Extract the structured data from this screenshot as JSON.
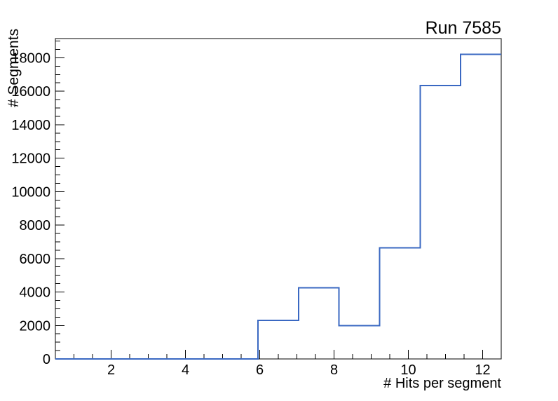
{
  "window": {
    "background": "#ffffff"
  },
  "chart_data": {
    "type": "step-histogram",
    "title": "Run 7585",
    "xlabel": "# Hits per segment",
    "ylabel": "# Segments",
    "xlim": [
      0.5,
      12.5
    ],
    "ylim": [
      0,
      19150
    ],
    "bin_edges": [
      0.5,
      1.5909,
      2.6818,
      3.7727,
      4.8636,
      5.9545,
      7.0455,
      8.1364,
      9.2273,
      10.3182,
      11.4091,
      12.5
    ],
    "counts": [
      0,
      0,
      0,
      0,
      0,
      2300,
      4250,
      2000,
      6650,
      16350,
      18200
    ],
    "x_ticks": {
      "major": [
        2,
        4,
        6,
        8,
        10,
        12
      ],
      "labels": [
        "2",
        "4",
        "6",
        "8",
        "10",
        "12"
      ],
      "minor_step": 0.5
    },
    "y_ticks": {
      "major": [
        0,
        2000,
        4000,
        6000,
        8000,
        10000,
        12000,
        14000,
        16000,
        18000
      ],
      "labels": [
        "0",
        "2000",
        "4000",
        "6000",
        "8000",
        "10000",
        "12000",
        "14000",
        "16000",
        "18000"
      ],
      "minor_step": 500
    },
    "grid": false,
    "legend": null,
    "line_color": "#3a68c2",
    "axis_color": "#000000",
    "text_color": "#000000"
  }
}
